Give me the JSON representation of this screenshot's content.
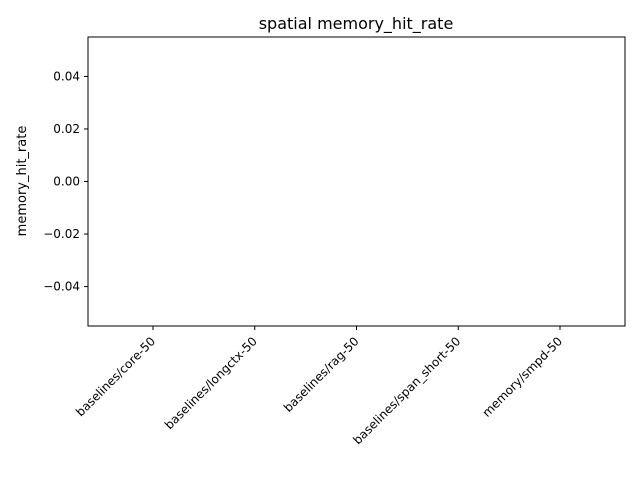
{
  "chart_data": {
    "type": "bar",
    "title": "spatial memory_hit_rate",
    "xlabel": "",
    "ylabel": "memory_hit_rate",
    "categories": [
      "baselines/core-50",
      "baselines/longctx-50",
      "baselines/rag-50",
      "baselines/span_short-50",
      "memory/smpd-50"
    ],
    "values": [
      0,
      0,
      0,
      0,
      0
    ],
    "ylim": [
      -0.055,
      0.055
    ],
    "yticks": [
      -0.04,
      -0.02,
      0.0,
      0.02,
      0.04
    ],
    "ytick_labels": [
      "−0.04",
      "−0.02",
      "0.00",
      "0.02",
      "0.04"
    ],
    "grid": false,
    "legend": "none"
  }
}
